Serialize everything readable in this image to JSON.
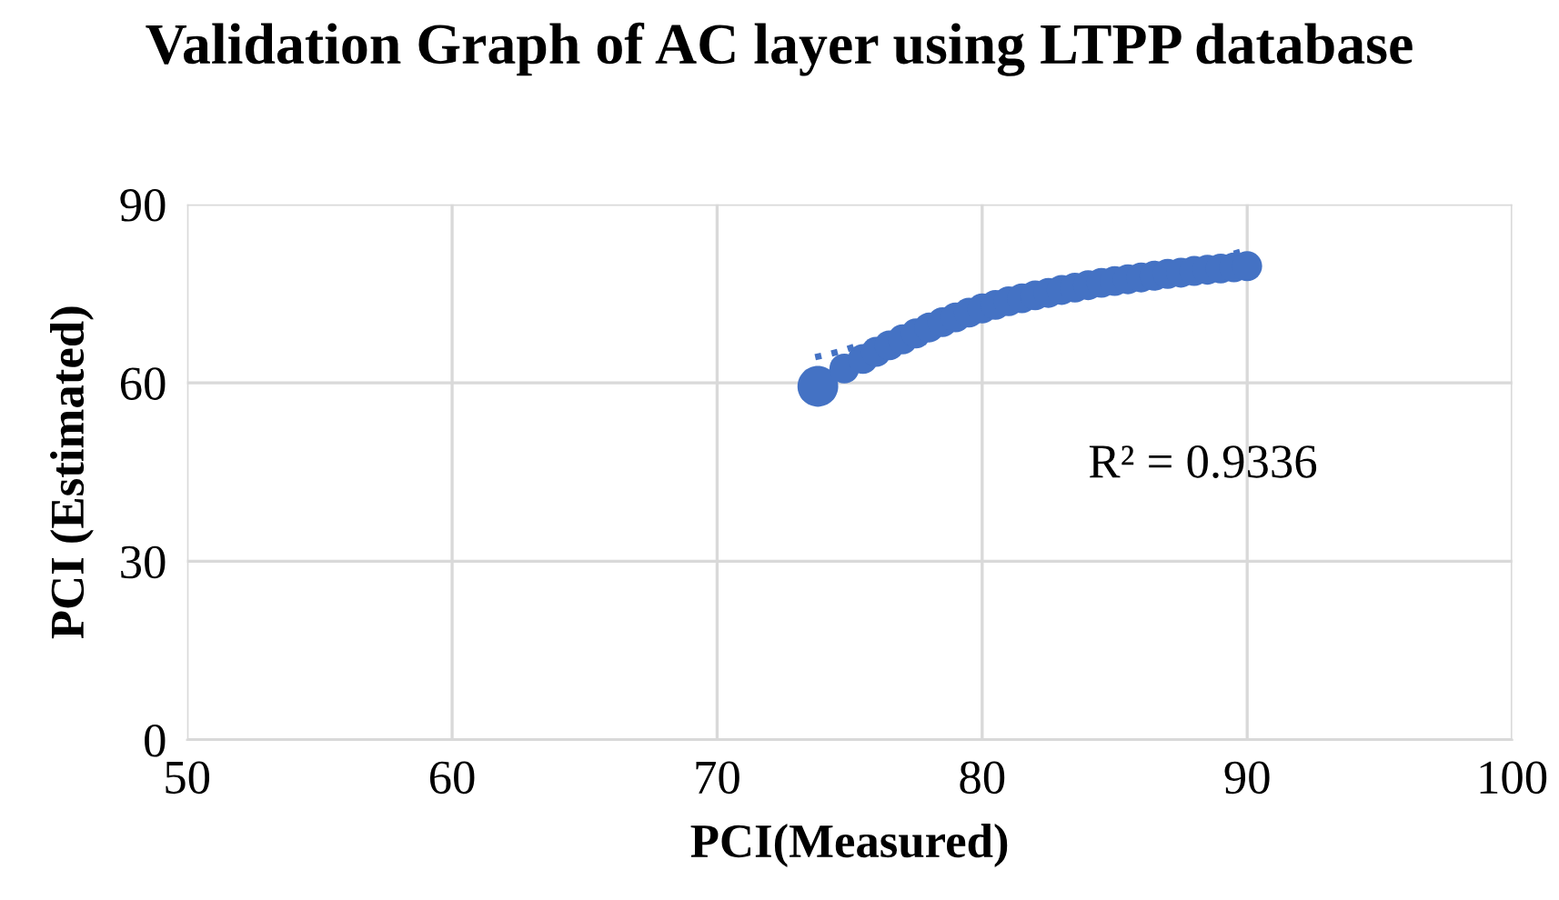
{
  "chart_data": {
    "type": "scatter",
    "title": "Validation Graph of AC layer using LTPP database",
    "xlabel": "PCI(Measured)",
    "ylabel": "PCI (Estimated)",
    "xlim": [
      50,
      100
    ],
    "xticks": [
      50,
      60,
      70,
      80,
      90,
      100
    ],
    "ylim": [
      0,
      90
    ],
    "yticks": [
      0,
      30,
      60,
      90
    ],
    "grid": true,
    "legend": false,
    "marker": "circle",
    "annotations": [
      "R² = 0.9336"
    ],
    "series": [
      {
        "color": "#4472c4",
        "x": [
          73.8
        ],
        "values": [
          59.4
        ]
      },
      {
        "color": "#4472c4",
        "x": [
          74.8,
          75.5,
          76,
          76.5,
          77,
          77.5,
          78,
          78.5,
          79,
          79.5,
          80,
          80.5,
          81,
          81.5,
          82,
          82.5,
          83,
          83.5,
          84,
          84.5,
          85,
          85.5,
          86,
          86.5,
          87,
          87.5,
          88,
          88.5,
          89,
          89.5,
          90
        ],
        "values": [
          62.4,
          64,
          65.2,
          66.3,
          67.3,
          68.3,
          69.3,
          70.2,
          71,
          71.8,
          72.5,
          73.1,
          73.7,
          74.2,
          74.7,
          75.1,
          75.6,
          76,
          76.4,
          76.8,
          77.1,
          77.4,
          77.7,
          78,
          78.3,
          78.5,
          78.8,
          79,
          79.2,
          79.4,
          79.6
        ]
      },
      {
        "type": "line",
        "line_style": "dotted",
        "marker": "none",
        "color": "#4472c4",
        "x": [
          73.7,
          74.2,
          74.8,
          75.2,
          80,
          89.5,
          90.1
        ],
        "values": [
          64.3,
          64.8,
          65.5,
          66.1,
          null,
          81.7,
          82.5
        ]
      }
    ]
  }
}
